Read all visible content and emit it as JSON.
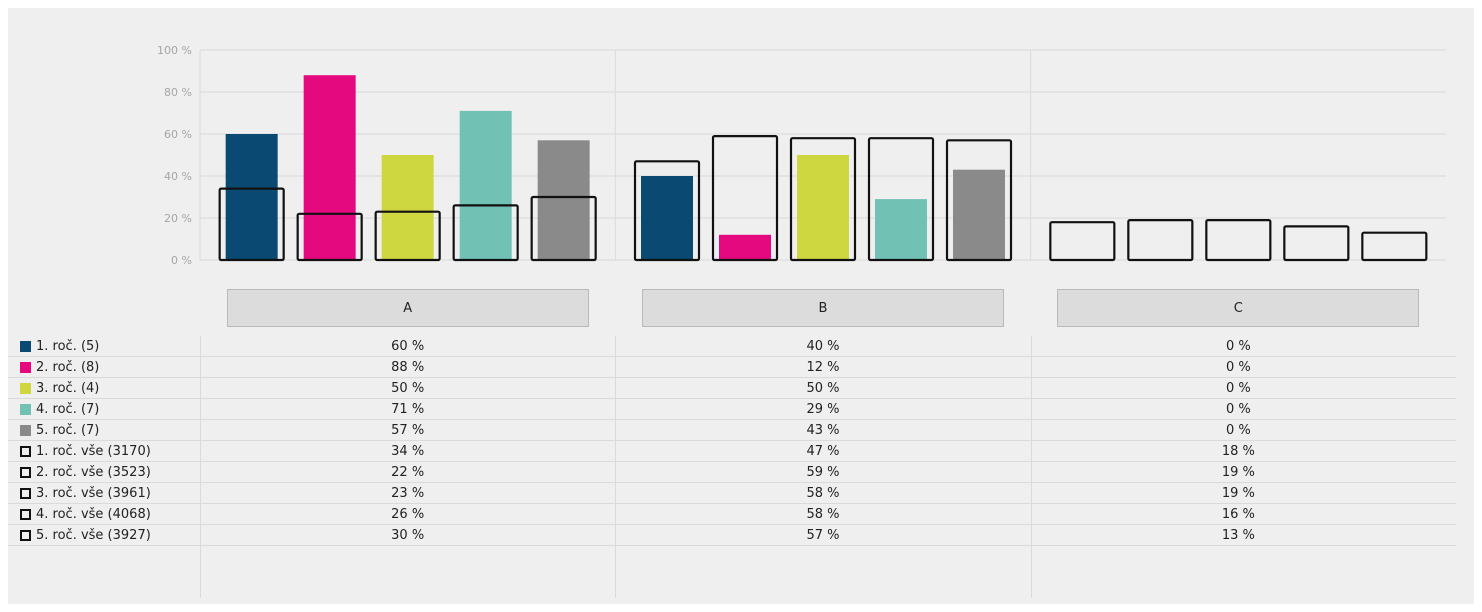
{
  "chart_data": {
    "type": "bar",
    "categories": [
      "A",
      "B",
      "C"
    ],
    "y_ticks": [
      "100 %",
      "80 %",
      "60 %",
      "40 %",
      "20 %",
      "0 %"
    ],
    "ylim": [
      0,
      100
    ],
    "grid": true,
    "legend_placement": "table-left",
    "series": [
      {
        "name": "1. roč. (5)",
        "color": "#0a4a72",
        "style": "filled",
        "values": [
          60,
          40,
          0
        ],
        "labels": [
          "60 %",
          "40 %",
          "0 %"
        ]
      },
      {
        "name": "2. roč. (8)",
        "color": "#e5097f",
        "style": "filled",
        "values": [
          88,
          12,
          0
        ],
        "labels": [
          "88 %",
          "12 %",
          "0 %"
        ]
      },
      {
        "name": "3. roč. (4)",
        "color": "#cfd740",
        "style": "filled",
        "values": [
          50,
          50,
          0
        ],
        "labels": [
          "50 %",
          "50 %",
          "0 %"
        ]
      },
      {
        "name": "4. roč. (7)",
        "color": "#71c1b4",
        "style": "filled",
        "values": [
          71,
          29,
          0
        ],
        "labels": [
          "71 %",
          "29 %",
          "0 %"
        ]
      },
      {
        "name": "5. roč. (7)",
        "color": "#8a8a8a",
        "style": "filled",
        "values": [
          57,
          43,
          0
        ],
        "labels": [
          "57 %",
          "43 %",
          "0 %"
        ]
      },
      {
        "name": "1. roč. vše (3170)",
        "color": "#111111",
        "style": "outline",
        "values": [
          34,
          47,
          18
        ],
        "labels": [
          "34 %",
          "47 %",
          "18 %"
        ]
      },
      {
        "name": "2. roč. vše (3523)",
        "color": "#111111",
        "style": "outline",
        "values": [
          22,
          59,
          19
        ],
        "labels": [
          "22 %",
          "59 %",
          "19 %"
        ]
      },
      {
        "name": "3. roč. vše (3961)",
        "color": "#111111",
        "style": "outline",
        "values": [
          23,
          58,
          19
        ],
        "labels": [
          "23 %",
          "58 %",
          "19 %"
        ]
      },
      {
        "name": "4. roč. vše (4068)",
        "color": "#111111",
        "style": "outline",
        "values": [
          26,
          58,
          16
        ],
        "labels": [
          "26 %",
          "58 %",
          "16 %"
        ]
      },
      {
        "name": "5. roč. vše (3927)",
        "color": "#111111",
        "style": "outline",
        "values": [
          30,
          57,
          13
        ],
        "labels": [
          "30 %",
          "57 %",
          "13 %"
        ]
      }
    ]
  }
}
